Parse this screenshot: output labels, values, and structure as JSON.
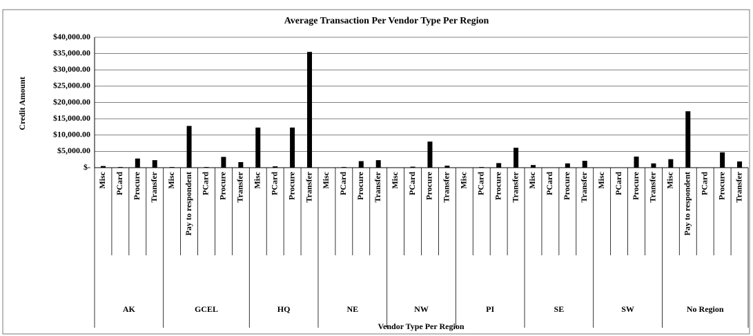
{
  "chart_data": {
    "type": "bar",
    "title": "Average Transaction Per Vendor Type Per Region",
    "ylabel": "Credit Amount",
    "xlabel": "Vendor Type Per Region",
    "color": "#000000",
    "grid": true,
    "ylim": [
      0,
      40000
    ],
    "yticks": [
      {
        "value": 0,
        "label": "$-"
      },
      {
        "value": 5000,
        "label": "$5,000.00"
      },
      {
        "value": 10000,
        "label": "$10,000.00"
      },
      {
        "value": 15000,
        "label": "$15,000.00"
      },
      {
        "value": 20000,
        "label": "$20,000.00"
      },
      {
        "value": 25000,
        "label": "$25,000.00"
      },
      {
        "value": 30000,
        "label": "$30,000.00"
      },
      {
        "value": 35000,
        "label": "$35,000.00"
      },
      {
        "value": 40000,
        "label": "$40,000.00"
      }
    ],
    "groups": [
      {
        "label": "AK",
        "categories": [
          "Misc",
          "PCard",
          "Procure",
          "Transfer"
        ],
        "values": [
          500,
          200,
          2800,
          2300
        ]
      },
      {
        "label": "GCEL",
        "categories": [
          "Misc",
          "Pay to respondent",
          "PCard",
          "Procure",
          "Transfer"
        ],
        "values": [
          200,
          12800,
          200,
          3300,
          1700
        ]
      },
      {
        "label": "HQ",
        "categories": [
          "Misc",
          "PCard",
          "Procure",
          "Transfer"
        ],
        "values": [
          12300,
          400,
          12300,
          35500
        ]
      },
      {
        "label": "NE",
        "categories": [
          "Misc",
          "PCard",
          "Procure",
          "Transfer"
        ],
        "values": [
          0,
          200,
          2000,
          2300
        ]
      },
      {
        "label": "NW",
        "categories": [
          "Misc",
          "PCard",
          "Procure",
          "Transfer"
        ],
        "values": [
          0,
          300,
          8000,
          600
        ]
      },
      {
        "label": "PI",
        "categories": [
          "Misc",
          "PCard",
          "Procure",
          "Transfer"
        ],
        "values": [
          0,
          200,
          1400,
          6100
        ]
      },
      {
        "label": "SE",
        "categories": [
          "Misc",
          "PCard",
          "Procure",
          "Transfer"
        ],
        "values": [
          800,
          100,
          1300,
          2100
        ]
      },
      {
        "label": "SW",
        "categories": [
          "Misc",
          "PCard",
          "Procure",
          "Transfer"
        ],
        "values": [
          0,
          100,
          3400,
          1300
        ]
      },
      {
        "label": "No Region",
        "categories": [
          "Misc",
          "Pay to respondent",
          "PCard",
          "Procure",
          "Transfer"
        ],
        "values": [
          2600,
          17300,
          100,
          4700,
          1900
        ]
      }
    ]
  }
}
